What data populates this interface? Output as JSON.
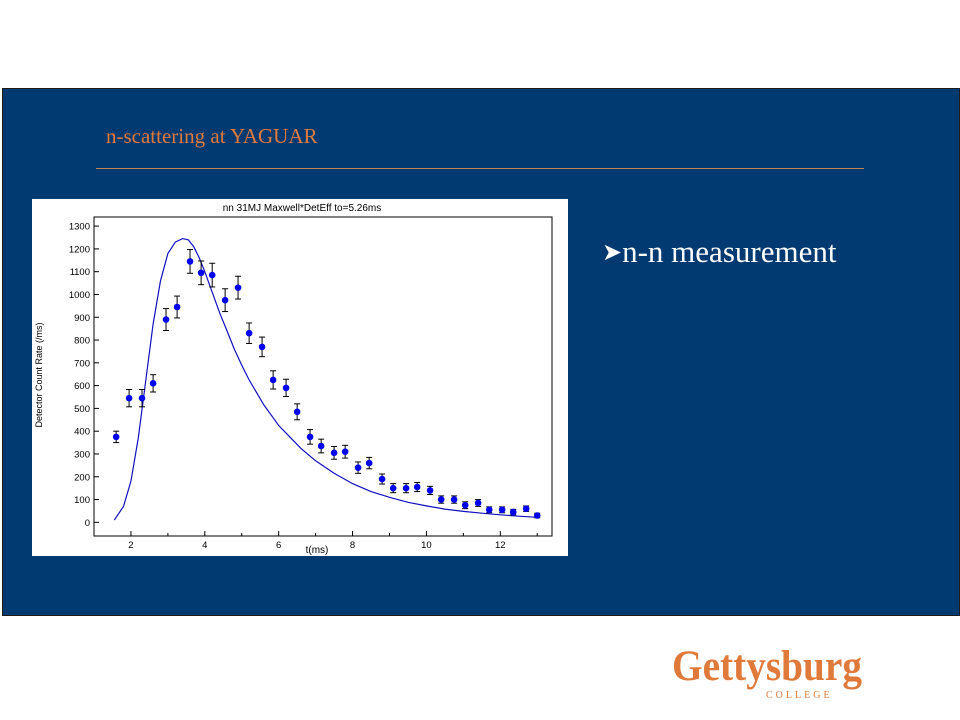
{
  "slide": {
    "title": "n-scattering at YAGUAR",
    "bullet_marker": "Ø",
    "bullet_text": "n-n measurement",
    "logo_main": "Gettysburg",
    "logo_sub": "COLLEGE"
  },
  "colors": {
    "panel": "#003a70",
    "title": "#e07a3a",
    "rule": "#c9824a",
    "bullet": "#ffffff",
    "data_points": "#0000ee",
    "fit_line": "#1010c0",
    "logo": "#e07a3a"
  },
  "chart_data": {
    "type": "scatter",
    "title": "nn  31MJ   Maxwell*DetEff       to=5.26ms",
    "xlabel": "t(ms)",
    "ylabel": "Detector Count Rate (/ms)",
    "xlim": [
      1.0,
      13.4
    ],
    "ylim": [
      -60,
      1340
    ],
    "x_ticks": [
      2,
      4,
      6,
      8,
      10,
      12
    ],
    "y_ticks": [
      0,
      100,
      200,
      300,
      400,
      500,
      600,
      700,
      800,
      900,
      1000,
      1100,
      1200,
      1300
    ],
    "grid": false,
    "series": [
      {
        "kind": "points_with_errors",
        "points": [
          {
            "x": 1.6,
            "y": 375,
            "err": 25
          },
          {
            "x": 1.95,
            "y": 545,
            "err": 38
          },
          {
            "x": 2.3,
            "y": 545,
            "err": 38
          },
          {
            "x": 2.6,
            "y": 610,
            "err": 38
          },
          {
            "x": 2.95,
            "y": 890,
            "err": 48
          },
          {
            "x": 3.25,
            "y": 945,
            "err": 48
          },
          {
            "x": 3.6,
            "y": 1145,
            "err": 52
          },
          {
            "x": 3.9,
            "y": 1095,
            "err": 52
          },
          {
            "x": 4.2,
            "y": 1085,
            "err": 52
          },
          {
            "x": 4.55,
            "y": 975,
            "err": 50
          },
          {
            "x": 4.9,
            "y": 1030,
            "err": 50
          },
          {
            "x": 5.2,
            "y": 830,
            "err": 45
          },
          {
            "x": 5.55,
            "y": 770,
            "err": 43
          },
          {
            "x": 5.85,
            "y": 625,
            "err": 40
          },
          {
            "x": 6.2,
            "y": 590,
            "err": 38
          },
          {
            "x": 6.5,
            "y": 485,
            "err": 35
          },
          {
            "x": 6.85,
            "y": 375,
            "err": 32
          },
          {
            "x": 7.15,
            "y": 335,
            "err": 30
          },
          {
            "x": 7.5,
            "y": 305,
            "err": 28
          },
          {
            "x": 7.8,
            "y": 310,
            "err": 28
          },
          {
            "x": 8.15,
            "y": 240,
            "err": 25
          },
          {
            "x": 8.45,
            "y": 260,
            "err": 25
          },
          {
            "x": 8.8,
            "y": 190,
            "err": 22
          },
          {
            "x": 9.1,
            "y": 150,
            "err": 20
          },
          {
            "x": 9.45,
            "y": 150,
            "err": 20
          },
          {
            "x": 9.75,
            "y": 155,
            "err": 20
          },
          {
            "x": 10.1,
            "y": 140,
            "err": 18
          },
          {
            "x": 10.4,
            "y": 100,
            "err": 16
          },
          {
            "x": 10.75,
            "y": 100,
            "err": 16
          },
          {
            "x": 11.05,
            "y": 75,
            "err": 15
          },
          {
            "x": 11.4,
            "y": 85,
            "err": 15
          },
          {
            "x": 11.7,
            "y": 55,
            "err": 13
          },
          {
            "x": 12.05,
            "y": 55,
            "err": 13
          },
          {
            "x": 12.35,
            "y": 45,
            "err": 12
          },
          {
            "x": 12.7,
            "y": 60,
            "err": 12
          },
          {
            "x": 13.0,
            "y": 30,
            "err": 10
          }
        ]
      },
      {
        "kind": "fit_curve",
        "x": [
          1.55,
          1.8,
          2.0,
          2.2,
          2.4,
          2.6,
          2.8,
          3.0,
          3.2,
          3.4,
          3.55,
          3.7,
          3.85,
          4.0,
          4.2,
          4.4,
          4.6,
          4.8,
          5.0,
          5.2,
          5.4,
          5.6,
          5.8,
          6.0,
          6.3,
          6.6,
          7.0,
          7.5,
          8.0,
          8.5,
          9.0,
          9.5,
          10.0,
          10.5,
          11.0,
          11.5,
          12.0,
          12.5,
          13.0
        ],
        "y": [
          10,
          70,
          180,
          370,
          620,
          870,
          1060,
          1180,
          1230,
          1245,
          1240,
          1210,
          1160,
          1100,
          1010,
          920,
          840,
          760,
          690,
          625,
          570,
          515,
          470,
          425,
          375,
          325,
          270,
          215,
          170,
          135,
          110,
          88,
          72,
          58,
          48,
          40,
          33,
          27,
          22
        ]
      }
    ]
  }
}
